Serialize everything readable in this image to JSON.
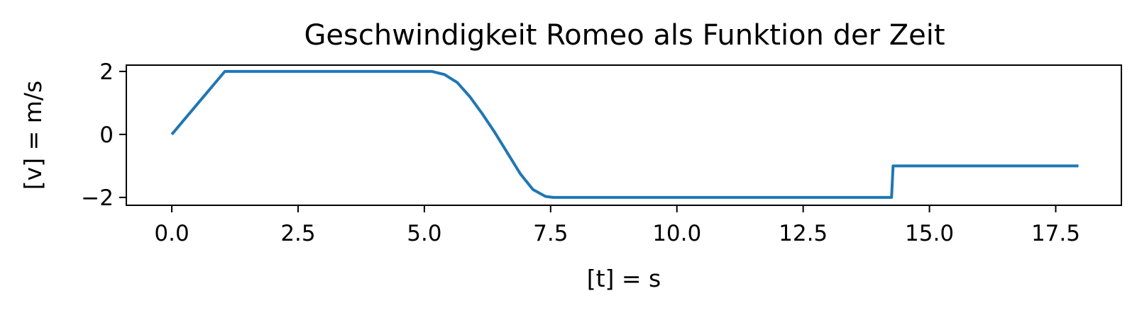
{
  "chart_data": {
    "type": "line",
    "title": "Geschwindigkeit Romeo als Funktion der Zeit",
    "xlabel": "[t] = s",
    "ylabel": "[v] = m/s",
    "xlim": [
      -0.9,
      18.8
    ],
    "ylim": [
      -2.25,
      2.2
    ],
    "x_ticks": [
      0.0,
      2.5,
      5.0,
      7.5,
      10.0,
      12.5,
      15.0,
      17.5
    ],
    "x_tick_labels": [
      "0.0",
      "2.5",
      "5.0",
      "7.5",
      "10.0",
      "12.5",
      "15.0",
      "17.5"
    ],
    "y_ticks": [
      2,
      0,
      -2
    ],
    "y_tick_labels": [
      "2",
      "0",
      "−2"
    ],
    "grid": false,
    "series": [
      {
        "color": "#1f77b4",
        "points": [
          [
            0.0,
            0.0
          ],
          [
            1.05,
            2.0
          ],
          [
            5.15,
            2.0
          ],
          [
            5.4,
            1.9
          ],
          [
            5.65,
            1.65
          ],
          [
            5.9,
            1.2
          ],
          [
            6.15,
            0.65
          ],
          [
            6.4,
            0.05
          ],
          [
            6.65,
            -0.6
          ],
          [
            6.9,
            -1.25
          ],
          [
            7.15,
            -1.75
          ],
          [
            7.4,
            -1.97
          ],
          [
            7.55,
            -2.0
          ],
          [
            14.25,
            -2.0
          ],
          [
            14.28,
            -1.0
          ],
          [
            17.95,
            -1.0
          ]
        ]
      }
    ]
  }
}
